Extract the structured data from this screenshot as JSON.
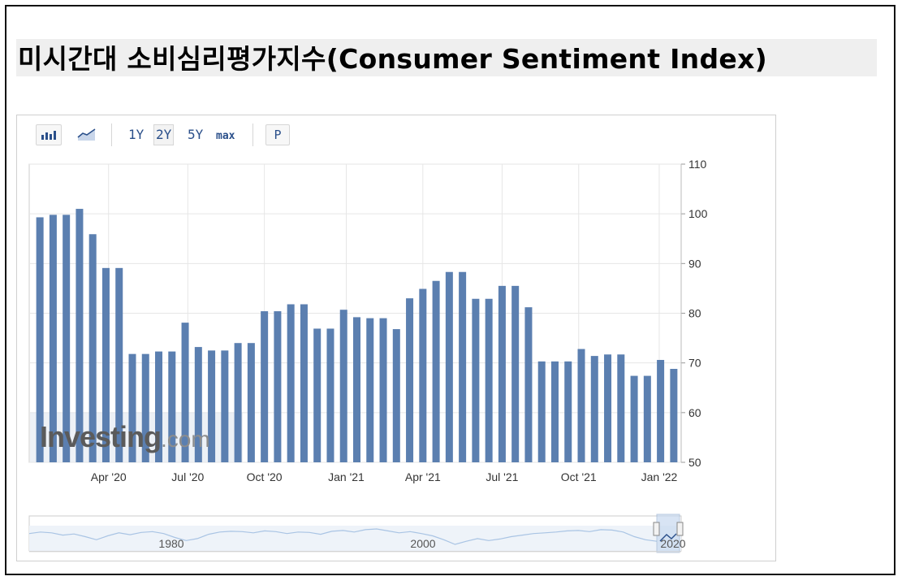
{
  "page": {
    "title": "미시간대 소비심리평가지수(Consumer Sentiment Index)"
  },
  "toolbar": {
    "bar_icon": "bar-chart-icon",
    "line_icon": "line-chart-icon",
    "range_1y": "1Y",
    "range_2y": "2Y",
    "range_5y": "5Y",
    "range_max": "max",
    "p_label": "P",
    "selected_range": "2Y"
  },
  "watermark": {
    "brand": "Investing",
    "suffix": ".com"
  },
  "colors": {
    "bar": "#5b7fb0",
    "grid": "#e6e6e6",
    "axis_text": "#333333",
    "navigator_line": "#a9c4e4"
  },
  "chart_data": {
    "type": "bar",
    "title": "",
    "xlabel": "",
    "ylabel": "",
    "ylim": [
      50,
      110
    ],
    "yticks": [
      50,
      60,
      70,
      80,
      90,
      100,
      110
    ],
    "grid": true,
    "values": [
      99.3,
      99.8,
      99.8,
      101.0,
      95.9,
      89.1,
      89.1,
      71.8,
      71.8,
      72.3,
      72.3,
      78.1,
      73.2,
      72.5,
      72.5,
      74.0,
      74.0,
      80.4,
      80.4,
      81.8,
      81.8,
      76.9,
      76.9,
      80.7,
      79.2,
      79.0,
      79.0,
      76.8,
      83.0,
      84.9,
      86.5,
      88.3,
      88.3,
      82.9,
      82.9,
      85.5,
      85.5,
      81.2,
      70.3,
      70.3,
      70.3,
      72.8,
      71.4,
      71.7,
      71.7,
      67.4,
      67.4,
      70.6,
      68.8
    ],
    "x_tick_labels": [
      {
        "label": "Apr '20",
        "bar_index": 5.2
      },
      {
        "label": "Jul '20",
        "bar_index": 11.2
      },
      {
        "label": "Oct '20",
        "bar_index": 17.0
      },
      {
        "label": "Jan '21",
        "bar_index": 23.2
      },
      {
        "label": "Apr '21",
        "bar_index": 29.0
      },
      {
        "label": "Jul '21",
        "bar_index": 35.0
      },
      {
        "label": "Oct '21",
        "bar_index": 40.8
      },
      {
        "label": "Jan '22",
        "bar_index": 46.9
      }
    ],
    "navigator": {
      "labels": [
        "1980",
        "2000",
        "2020"
      ],
      "trend": [
        88,
        92,
        90,
        84,
        87,
        80,
        72,
        82,
        90,
        85,
        91,
        93,
        88,
        78,
        70,
        75,
        86,
        92,
        94,
        93,
        90,
        95,
        93,
        88,
        92,
        91,
        86,
        94,
        96,
        92,
        98,
        100,
        95,
        90,
        93,
        88,
        82,
        72,
        60,
        68,
        75,
        70,
        74,
        80,
        84,
        88,
        90,
        92,
        95,
        96,
        93,
        98,
        97,
        92,
        80,
        72,
        68
      ]
    }
  }
}
